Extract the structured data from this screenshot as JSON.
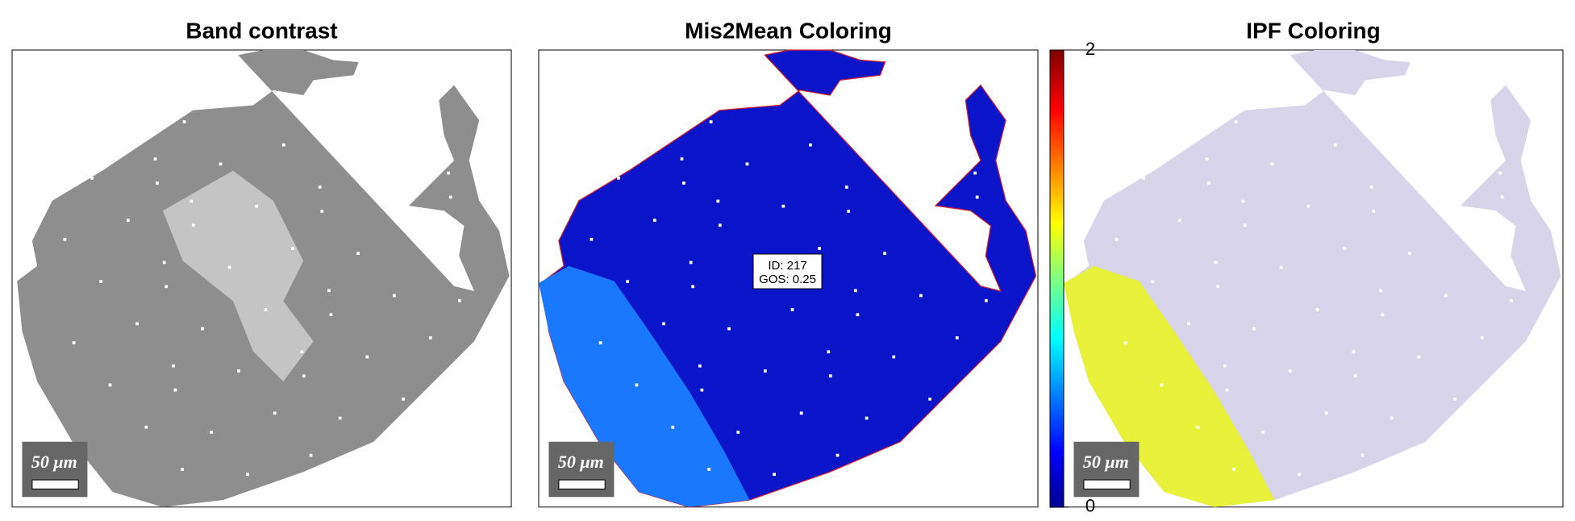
{
  "panels": [
    {
      "title": "Band contrast",
      "scalebar": "50 μm"
    },
    {
      "title": "Mis2Mean Coloring",
      "scalebar": "50 μm"
    },
    {
      "title": "IPF Coloring",
      "scalebar": "50 μm"
    }
  ],
  "colorbar": {
    "ticks": [
      0,
      2
    ]
  },
  "datatip": {
    "lines": [
      "ID: 217",
      "GOS: 0.25"
    ]
  }
}
